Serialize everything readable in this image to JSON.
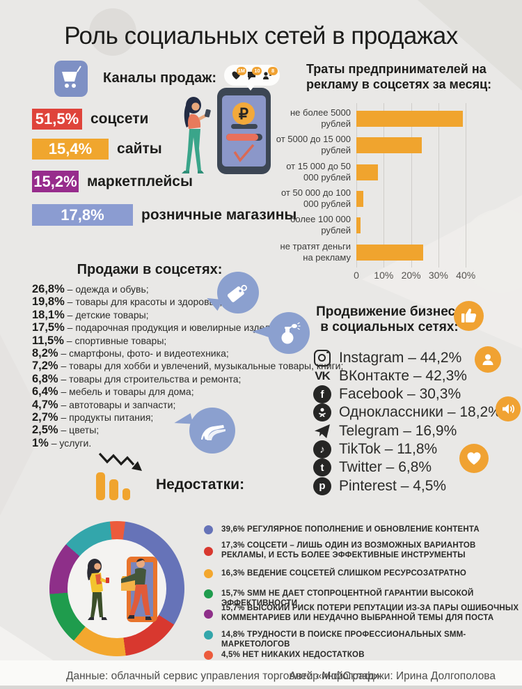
{
  "page": {
    "title": "Роль социальных сетей в продажах"
  },
  "channels": {
    "heading": "Каналы продаж:",
    "items": [
      {
        "value": "51,5%",
        "label": "соцсети",
        "color": "#df443b"
      },
      {
        "value": "15,4%",
        "label": "сайты",
        "color": "#f0a62e"
      },
      {
        "value": "15,2%",
        "label": "маркетплейсы",
        "color": "#972c8c"
      },
      {
        "value": "17,8%",
        "label": "розничные магазины",
        "color": "#8b9cd1"
      }
    ]
  },
  "phone": {
    "badges": [
      "1M",
      "10",
      "8"
    ]
  },
  "sales": {
    "heading": "Продажи в соцсетях:",
    "items": [
      {
        "pct": "26,8%",
        "label": "одежда и обувь;"
      },
      {
        "pct": "19,8%",
        "label": "товары для красоты и здоровья;"
      },
      {
        "pct": "18,1%",
        "label": "детские товары;"
      },
      {
        "pct": "17,5%",
        "label": "подарочная продукция и ювелирные изделия;"
      },
      {
        "pct": "11,5%",
        "label": "спортивные товары;"
      },
      {
        "pct": "8,2%",
        "label": "смартфоны, фото- и видеотехника;"
      },
      {
        "pct": "7,2%",
        "label": "товары для хобби и увлечений, музыкальные товары, книги;"
      },
      {
        "pct": "6,8%",
        "label": "товары для строительства и ремонта;"
      },
      {
        "pct": "6,4%",
        "label": "мебель и товары для дома;"
      },
      {
        "pct": "4,7%",
        "label": "автотовары и запчасти;"
      },
      {
        "pct": "2,7%",
        "label": "продукты питания;"
      },
      {
        "pct": "2,5%",
        "label": "цветы;"
      },
      {
        "pct": "1%",
        "label": "услуги."
      }
    ]
  },
  "promotion": {
    "heading_line1": "Продвижение бизнеса",
    "heading_line2": "в социальных сетях:",
    "items": [
      {
        "name": "Instagram",
        "value": "44,2%",
        "icon": "instagram-icon"
      },
      {
        "name": "ВКонтакте",
        "value": "42,3%",
        "icon": "vk-icon"
      },
      {
        "name": "Facebook",
        "value": "30,3%",
        "icon": "facebook-icon"
      },
      {
        "name": "Одноклассники",
        "value": "18,2%",
        "icon": "odnoklassniki-icon"
      },
      {
        "name": "Telegram",
        "value": "16,9%",
        "icon": "telegram-icon"
      },
      {
        "name": "TikTok",
        "value": "11,8%",
        "icon": "tiktok-icon"
      },
      {
        "name": "Twitter",
        "value": "6,8%",
        "icon": "twitter-icon"
      },
      {
        "name": "Pinterest",
        "value": "4,5%",
        "icon": "pinterest-icon"
      }
    ]
  },
  "drawbacks": {
    "heading": "Недостатки:",
    "legend": [
      {
        "pct": "39,6%",
        "text": "РЕГУЛЯРНОЕ ПОПОЛНЕНИЕ И ОБНОВЛЕНИЕ КОНТЕНТА",
        "color": "#6673b8"
      },
      {
        "pct": "17,3%",
        "text": "СОЦСЕТИ – ЛИШЬ ОДИН ИЗ ВОЗМОЖНЫХ ВАРИАНТОВ РЕКЛАМЫ, И ЕСТЬ БОЛЕЕ ЭФФЕКТИВНЫЕ ИНСТРУМЕНТЫ",
        "color": "#d8382f"
      },
      {
        "pct": "16,3%",
        "text": "ВЕДЕНИЕ СОЦСЕТЕЙ СЛИШКОМ РЕСУРСОЗАТРАТНО",
        "color": "#f3a72e"
      },
      {
        "pct": "15,7%",
        "text": "SMM НЕ ДАЕТ СТОПРОЦЕНТНОЙ ГАРАНТИИ ВЫСОКОЙ ЭФФЕКТИВНОСТИ",
        "color": "#1f9c4d"
      },
      {
        "pct": "15,7%",
        "text": "ВЫСОКИЙ РИСК ПОТЕРИ РЕПУТАЦИИ ИЗ-ЗА ПАРЫ ОШИБОЧНЫХ КОММЕНТАРИЕВ ИЛИ НЕУДАЧНО ВЫБРАННОЙ ТЕМЫ ДЛЯ ПОСТА",
        "color": "#8e2f89"
      },
      {
        "pct": "14,8%",
        "text": "ТРУДНОСТИ В ПОИСКЕ ПРОФЕССИОНАЛЬНЫХ SMM-МАРКЕТОЛОГОВ",
        "color": "#33a6ab"
      },
      {
        "pct": "4,5%",
        "text": "НЕТ НИКАКИХ НЕДОСТАТКОВ",
        "color": "#ec5b3c"
      }
    ]
  },
  "footer": {
    "source": "Данные: облачный сервис управления торговлей «МойСклад»",
    "author": "Автор инфографики: Ирина Долгополова"
  },
  "chart_data": [
    {
      "type": "bar",
      "orientation": "horizontal",
      "title": "Траты предпринимателей на рекламу в соцсетях за месяц:",
      "title_lines": [
        "Траты предпринимателей на",
        "рекламу в соцсетях за месяц:"
      ],
      "categories": [
        "не более 5000 рублей",
        "от 5000 до 15 000 рублей",
        "от 15 000 до 50 000 рублей",
        "от 50 000 до 100 000 рублей",
        "более 100 000 рублей",
        "не тратят деньги на рекламу"
      ],
      "values": [
        39,
        24,
        8,
        2.5,
        1.5,
        24.5
      ],
      "unit": "%",
      "xlim": [
        0,
        40
      ],
      "xticks": [
        {
          "label": "0",
          "value": 0
        },
        {
          "label": "10%",
          "value": 10
        },
        {
          "label": "20%",
          "value": 20
        },
        {
          "label": "30%",
          "value": 30
        },
        {
          "label": "40%",
          "value": 40
        }
      ],
      "bar_color": "#f0a42e",
      "grid": true,
      "legend_position": "none"
    },
    {
      "type": "donut",
      "title": "Недостатки:",
      "start_angle_deg": -6,
      "segments": [
        {
          "label": "НЕТ НИКАКИХ НЕДОСТАТКОВ",
          "value": 4.5,
          "color": "#ec5b3c"
        },
        {
          "label": "РЕГУЛЯРНОЕ ПОПОЛНЕНИЕ И ОБНОВЛЕНИЕ КОНТЕНТА",
          "value": 39.6,
          "color": "#6673b8"
        },
        {
          "label": "СОЦСЕТИ – ЛИШЬ ОДИН ИЗ ВОЗМОЖНЫХ ВАРИАНТОВ РЕКЛАМЫ, И ЕСТЬ БОЛЕЕ ЭФФЕКТИВНЫЕ ИНСТРУМЕНТЫ",
          "value": 17.3,
          "color": "#d8382f"
        },
        {
          "label": "ВЕДЕНИЕ СОЦСЕТЕЙ СЛИШКОМ РЕСУРСОЗАТРАТНО",
          "value": 16.3,
          "color": "#f3a72e"
        },
        {
          "label": "SMM НЕ ДАЕТ СТОПРОЦЕНТНОЙ ГАРАНТИИ ВЫСОКОЙ ЭФФЕКТИВНОСТИ",
          "value": 15.7,
          "color": "#1f9c4d"
        },
        {
          "label": "ВЫСОКИЙ РИСК ПОТЕРИ РЕПУТАЦИИ ИЗ-ЗА ПАРЫ ОШИБОЧНЫХ КОММЕНТАРИЕВ ИЛИ НЕУДАЧНО ВЫБРАННОЙ ТЕМЫ ДЛЯ ПОСТА",
          "value": 15.7,
          "color": "#8e2f89"
        },
        {
          "label": "ТРУДНОСТИ В ПОИСКЕ ПРОФЕССИОНАЛЬНЫХ SMM-МАРКЕТОЛОГОВ",
          "value": 14.8,
          "color": "#33a6ab"
        }
      ],
      "legend_position": "right"
    }
  ]
}
